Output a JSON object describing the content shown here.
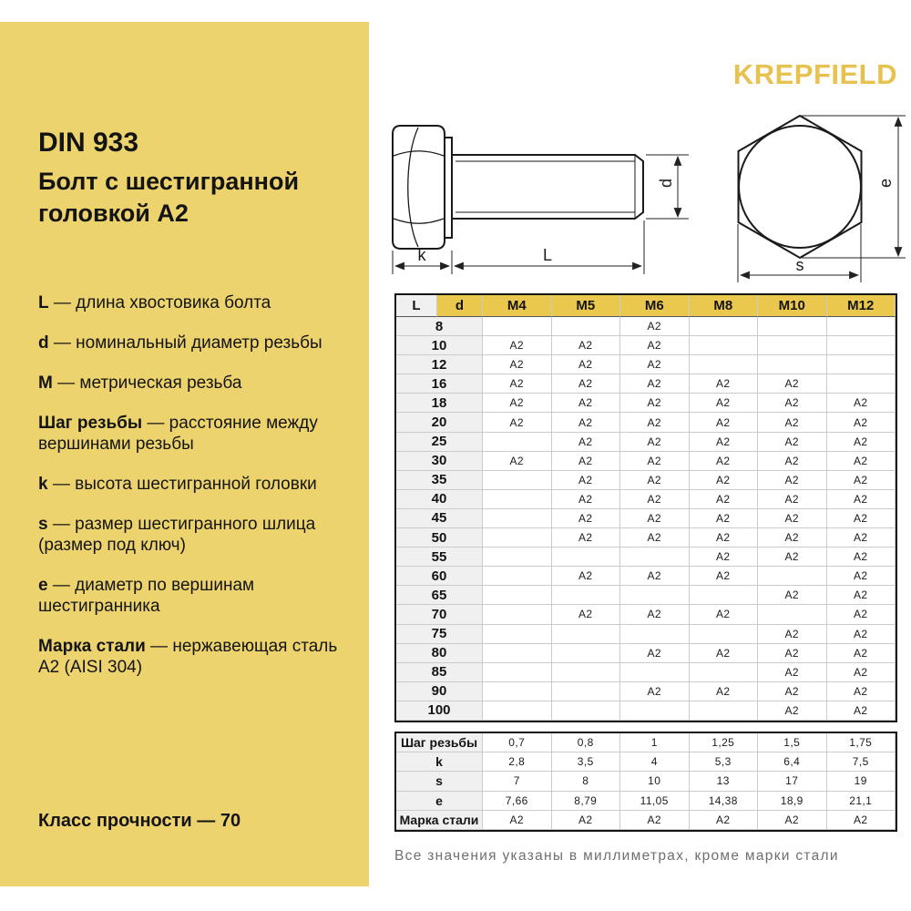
{
  "brand": "KREPFIELD",
  "sidebar": {
    "title": "DIN 933",
    "subtitle": "Болт с шестигранной головкой А2",
    "defs": [
      {
        "term": "L",
        "rest": " — длина хвостовика болта"
      },
      {
        "term": "d",
        "rest": " — номинальный диаметр резьбы"
      },
      {
        "term": "M",
        "rest": " — метрическая резьба"
      },
      {
        "term": "Шаг резьбы",
        "rest": " — расстояние между вершинами резьбы"
      },
      {
        "term": "k",
        "rest": " — высота шестигранной головки"
      },
      {
        "term": "s",
        "rest": " — размер шестигранного шлица (размер под ключ)"
      },
      {
        "term": "e",
        "rest": " — диаметр по вершинам шестигранника"
      },
      {
        "term": "Марка стали",
        "rest": " — нержавеющая сталь А2 (AISI 304)"
      }
    ],
    "strength_class": "Класс прочности — 70"
  },
  "drawing": {
    "labels": {
      "k": "k",
      "L": "L",
      "d": "d",
      "s": "s",
      "e": "e"
    }
  },
  "main_table": {
    "col_headers": [
      "L",
      "d",
      "M4",
      "M5",
      "M6",
      "M8",
      "M10",
      "M12"
    ],
    "rows": [
      {
        "size": "8",
        "cells": [
          "",
          "",
          "A2",
          "",
          "",
          ""
        ]
      },
      {
        "size": "10",
        "cells": [
          "A2",
          "A2",
          "A2",
          "",
          "",
          ""
        ]
      },
      {
        "size": "12",
        "cells": [
          "A2",
          "A2",
          "A2",
          "",
          "",
          ""
        ]
      },
      {
        "size": "16",
        "cells": [
          "A2",
          "A2",
          "A2",
          "A2",
          "A2",
          ""
        ]
      },
      {
        "size": "18",
        "cells": [
          "A2",
          "A2",
          "A2",
          "A2",
          "A2",
          "A2"
        ]
      },
      {
        "size": "20",
        "cells": [
          "A2",
          "A2",
          "A2",
          "A2",
          "A2",
          "A2"
        ]
      },
      {
        "size": "25",
        "cells": [
          "",
          "A2",
          "A2",
          "A2",
          "A2",
          "A2"
        ]
      },
      {
        "size": "30",
        "cells": [
          "A2",
          "A2",
          "A2",
          "A2",
          "A2",
          "A2"
        ]
      },
      {
        "size": "35",
        "cells": [
          "",
          "A2",
          "A2",
          "A2",
          "A2",
          "A2"
        ]
      },
      {
        "size": "40",
        "cells": [
          "",
          "A2",
          "A2",
          "A2",
          "A2",
          "A2"
        ]
      },
      {
        "size": "45",
        "cells": [
          "",
          "A2",
          "A2",
          "A2",
          "A2",
          "A2"
        ]
      },
      {
        "size": "50",
        "cells": [
          "",
          "A2",
          "A2",
          "A2",
          "A2",
          "A2"
        ]
      },
      {
        "size": "55",
        "cells": [
          "",
          "",
          "",
          "A2",
          "A2",
          "A2"
        ]
      },
      {
        "size": "60",
        "cells": [
          "",
          "A2",
          "A2",
          "A2",
          "",
          "A2"
        ]
      },
      {
        "size": "65",
        "cells": [
          "",
          "",
          "",
          "",
          "A2",
          "A2"
        ]
      },
      {
        "size": "70",
        "cells": [
          "",
          "A2",
          "A2",
          "A2",
          "",
          "A2"
        ]
      },
      {
        "size": "75",
        "cells": [
          "",
          "",
          "",
          "",
          "A2",
          "A2"
        ]
      },
      {
        "size": "80",
        "cells": [
          "",
          "",
          "A2",
          "A2",
          "A2",
          "A2"
        ]
      },
      {
        "size": "85",
        "cells": [
          "",
          "",
          "",
          "",
          "A2",
          "A2"
        ]
      },
      {
        "size": "90",
        "cells": [
          "",
          "",
          "A2",
          "A2",
          "A2",
          "A2"
        ]
      },
      {
        "size": "100",
        "cells": [
          "",
          "",
          "",
          "",
          "A2",
          "A2"
        ]
      }
    ]
  },
  "spec_table": {
    "rows": [
      {
        "label": "Шаг резьбы",
        "values": [
          "0,7",
          "0,8",
          "1",
          "1,25",
          "1,5",
          "1,75"
        ]
      },
      {
        "label": "k",
        "values": [
          "2,8",
          "3,5",
          "4",
          "5,3",
          "6,4",
          "7,5"
        ]
      },
      {
        "label": "s",
        "values": [
          "7",
          "8",
          "10",
          "13",
          "17",
          "19"
        ]
      },
      {
        "label": "e",
        "values": [
          "7,66",
          "8,79",
          "11,05",
          "14,38",
          "18,9",
          "21,1"
        ]
      },
      {
        "label": "Марка стали",
        "values": [
          "A2",
          "A2",
          "A2",
          "A2",
          "A2",
          "A2"
        ]
      }
    ]
  },
  "footnote": "Все значения указаны в миллиметрах, кроме марки стали",
  "colors": {
    "panel_yellow": "#ECD36E",
    "header_gold": "#EAC74D",
    "brand_gold": "#E7C24E",
    "label_gray": "#F0F0F0",
    "grid_line": "#CBCBCB",
    "note_gray": "#6F6F6F"
  }
}
